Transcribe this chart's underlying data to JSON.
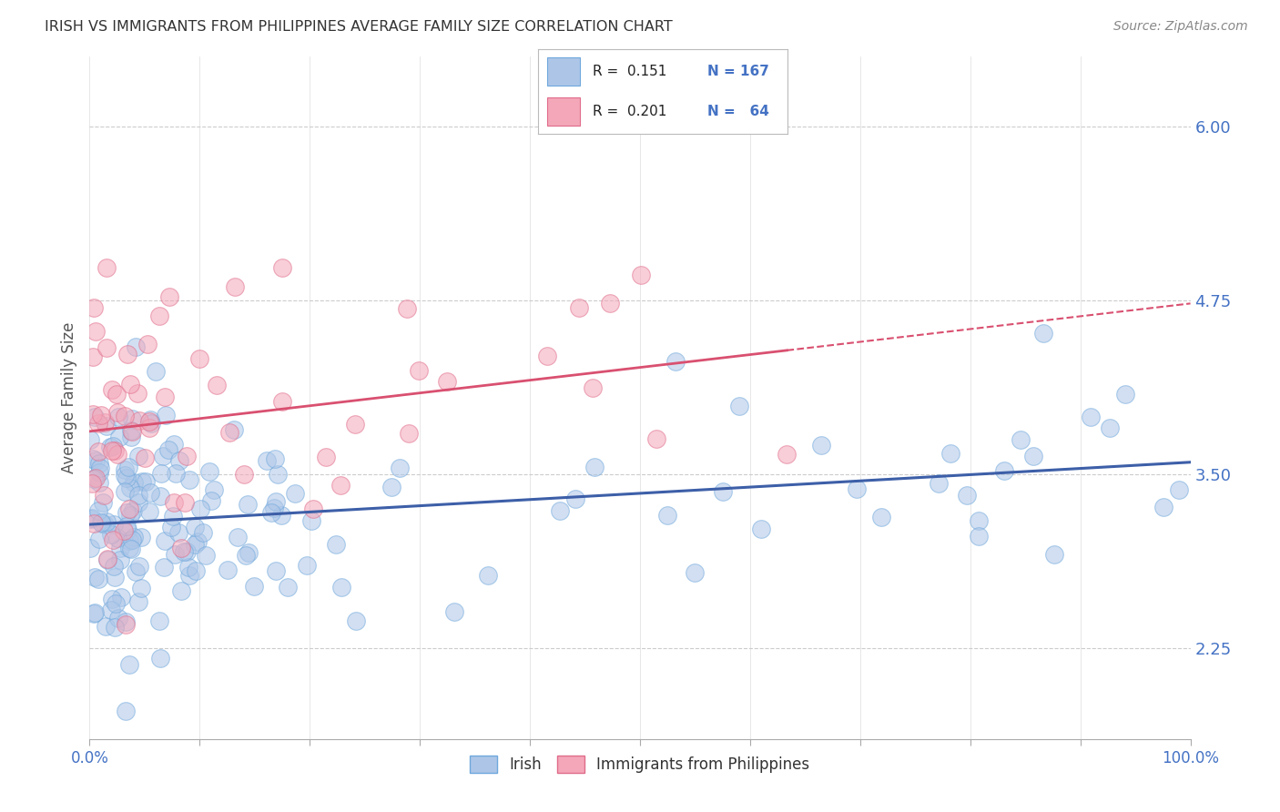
{
  "title": "IRISH VS IMMIGRANTS FROM PHILIPPINES AVERAGE FAMILY SIZE CORRELATION CHART",
  "source": "Source: ZipAtlas.com",
  "ylabel": "Average Family Size",
  "xlim": [
    0.0,
    1.0
  ],
  "ylim": [
    1.6,
    6.5
  ],
  "yticks": [
    2.25,
    3.5,
    4.75,
    6.0
  ],
  "ytick_labels": [
    "2.25",
    "3.50",
    "4.75",
    "6.00"
  ],
  "xtick_positions": [
    0.0,
    0.1,
    0.2,
    0.3,
    0.4,
    0.5,
    0.6,
    0.7,
    0.8,
    0.9,
    1.0
  ],
  "xticklabels_show": {
    "0.0": "0.0%",
    "1.0": "100.0%"
  },
  "irish_color": "#adc6e8",
  "irish_edge_color": "#6fa8dc",
  "phil_color": "#f4a7b9",
  "phil_edge_color": "#e06c8a",
  "trend_irish_color": "#3d5fa8",
  "trend_phil_color": "#d95070",
  "legend_R_irish": "0.151",
  "legend_N_irish": "167",
  "legend_R_phil": "0.201",
  "legend_N_phil": "64",
  "background_color": "#ffffff",
  "grid_color": "#cccccc",
  "title_color": "#333333",
  "tick_label_color": "#4472c4"
}
